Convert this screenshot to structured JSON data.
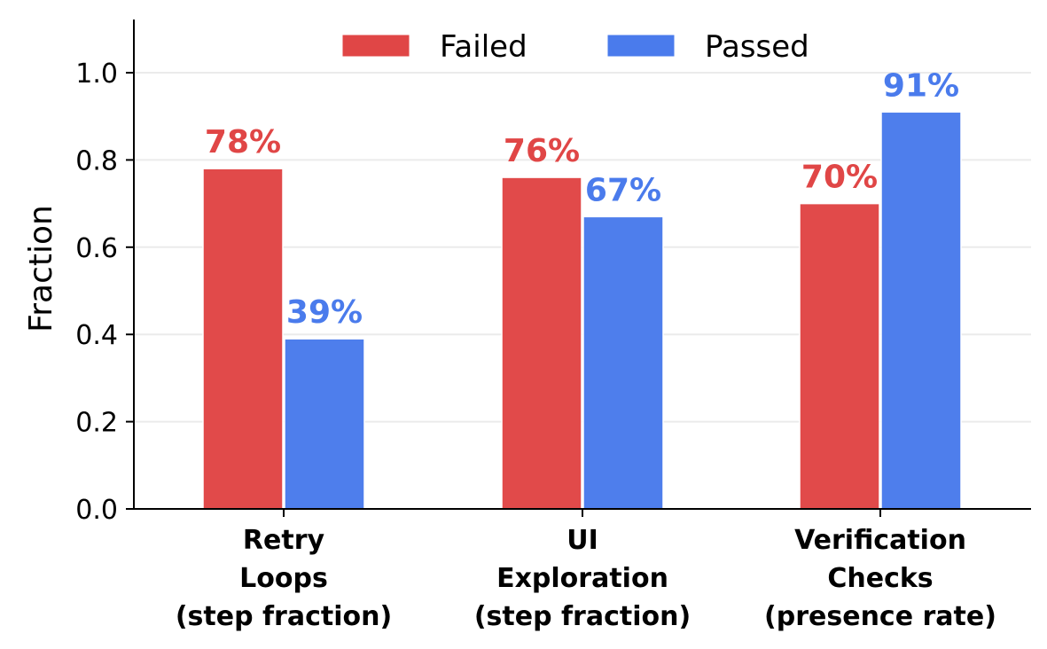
{
  "chart_data": {
    "type": "bar",
    "title": "",
    "xlabel": "",
    "ylabel": "Fraction",
    "ylim": [
      0,
      1.12
    ],
    "yticks": [
      0.0,
      0.2,
      0.4,
      0.6,
      0.8,
      1.0
    ],
    "ytick_labels": [
      "0.0",
      "0.2",
      "0.4",
      "0.6",
      "0.8",
      "1.0"
    ],
    "grid": "horizontal",
    "legend_position": "upper center",
    "categories": [
      [
        "Retry",
        "Loops",
        "(step fraction)"
      ],
      [
        "UI",
        "Exploration",
        "(step fraction)"
      ],
      [
        "Verification",
        "Checks",
        "(presence rate)"
      ]
    ],
    "series": [
      {
        "name": "Failed",
        "color": "#e04646",
        "values": [
          0.78,
          0.76,
          0.7
        ],
        "labels": [
          "78%",
          "76%",
          "70%"
        ]
      },
      {
        "name": "Passed",
        "color": "#4a7bec",
        "values": [
          0.39,
          0.67,
          0.91
        ],
        "labels": [
          "39%",
          "67%",
          "91%"
        ]
      }
    ]
  }
}
